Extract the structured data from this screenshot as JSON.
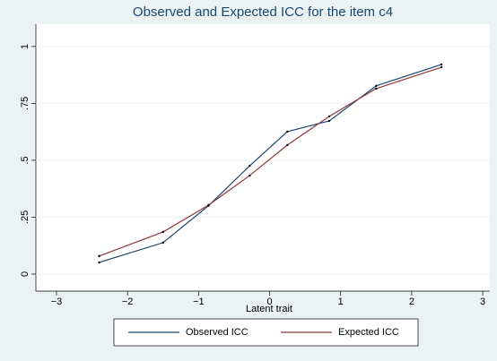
{
  "chart_data": {
    "type": "line",
    "title": "Observed and Expected ICC for the item c4",
    "x_label": "Latent trait",
    "x": [
      -2.4,
      -1.5,
      -0.86,
      -0.28,
      0.25,
      0.84,
      1.5,
      2.42
    ],
    "series": [
      {
        "name": "Observed ICC",
        "color": "#1a476f",
        "values": [
          0.051,
          0.138,
          0.3,
          0.476,
          0.626,
          0.673,
          0.827,
          0.921
        ]
      },
      {
        "name": "Expected ICC",
        "color": "#90353b",
        "values": [
          0.079,
          0.185,
          0.303,
          0.433,
          0.567,
          0.693,
          0.815,
          0.909
        ]
      }
    ],
    "xlim": [
      -3.29,
      3.1
    ],
    "ylim": [
      -0.075,
      1.098
    ],
    "xticks": [
      {
        "value": -3,
        "label": "−3"
      },
      {
        "value": -2,
        "label": "−2"
      },
      {
        "value": -1,
        "label": "−1"
      },
      0,
      1,
      2,
      3
    ],
    "yticks": [
      0,
      {
        "value": 0.25,
        "label": ".25"
      },
      {
        "value": 0.5,
        "label": ".5"
      },
      {
        "value": 0.75,
        "label": ".75"
      },
      1
    ],
    "grid": true,
    "legend": "bottom"
  }
}
